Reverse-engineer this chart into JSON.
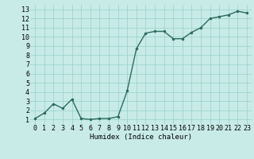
{
  "x": [
    0,
    1,
    2,
    3,
    4,
    5,
    6,
    7,
    8,
    9,
    10,
    11,
    12,
    13,
    14,
    15,
    16,
    17,
    18,
    19,
    20,
    21,
    22,
    23
  ],
  "y": [
    1.1,
    1.7,
    2.7,
    2.2,
    3.2,
    1.1,
    1.0,
    1.1,
    1.1,
    1.3,
    4.1,
    8.7,
    10.4,
    10.6,
    10.6,
    9.8,
    9.8,
    10.5,
    11.0,
    12.0,
    12.2,
    12.4,
    12.8,
    12.6
  ],
  "line_color": "#2d6b5e",
  "marker": ".",
  "markersize": 3,
  "linewidth": 1.0,
  "bg_color": "#c8ebe8",
  "grid_color": "#9dd4ce",
  "xlabel": "Humidex (Indice chaleur)",
  "xlabel_fontsize": 6.5,
  "xlabel_fontname": "monospace",
  "tick_fontsize": 6,
  "tick_fontname": "monospace",
  "xlim": [
    -0.5,
    23.5
  ],
  "ylim": [
    0.5,
    13.5
  ],
  "yticks": [
    1,
    2,
    3,
    4,
    5,
    6,
    7,
    8,
    9,
    10,
    11,
    12,
    13
  ],
  "xticks": [
    0,
    1,
    2,
    3,
    4,
    5,
    6,
    7,
    8,
    9,
    10,
    11,
    12,
    13,
    14,
    15,
    16,
    17,
    18,
    19,
    20,
    21,
    22,
    23
  ]
}
